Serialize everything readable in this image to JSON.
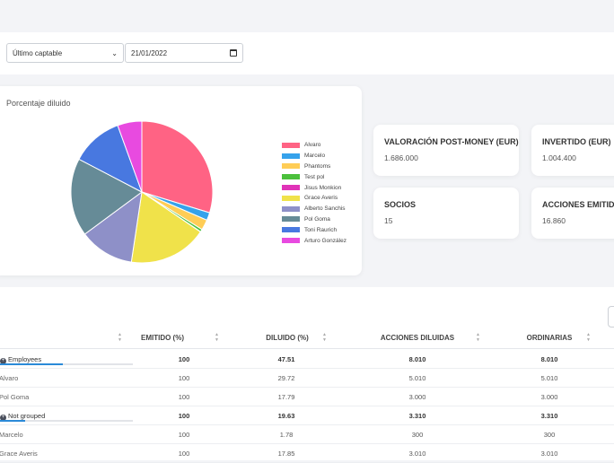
{
  "filters": {
    "period_select": "Último captable",
    "date_value": "21/01/2022"
  },
  "chart_data": {
    "type": "pie",
    "title": "Porcentaje diluido",
    "legend_position": "right",
    "series": [
      {
        "name": "Alvaro",
        "value": 29.72,
        "color": "#ff6384"
      },
      {
        "name": "Marcelo",
        "value": 1.78,
        "color": "#36a2eb"
      },
      {
        "name": "Phantoms",
        "value": 2.37,
        "color": "#ffcd56"
      },
      {
        "name": "Test pol",
        "value": 0.59,
        "color": "#4bc03c"
      },
      {
        "name": "Jisus Monkion",
        "value": 0.06,
        "color": "#e033b8"
      },
      {
        "name": "Grace Averis",
        "value": 17.85,
        "color": "#f0e24a"
      },
      {
        "name": "Alberto Sanchis",
        "value": 12.5,
        "color": "#8e90c8"
      },
      {
        "name": "Pol Goma",
        "value": 17.79,
        "color": "#668b97"
      },
      {
        "name": "Toni Raurich",
        "value": 11.8,
        "color": "#4878e0"
      },
      {
        "name": "Arturo González",
        "value": 5.54,
        "color": "#e84ae0"
      }
    ]
  },
  "stats": [
    {
      "label": "VALORACIÓN POST-MONEY (EUR)",
      "value": "1.686.000"
    },
    {
      "label": "INVERTIDO (EUR)",
      "value": "1.004.400"
    },
    {
      "label": "SOCIOS",
      "value": "15"
    },
    {
      "label": "ACCIONES EMITIDAS",
      "value": "16.860"
    }
  ],
  "table": {
    "columns": [
      "EMITIDO (%)",
      "DILUIDO (%)",
      "ACCIONES DILUIDAS",
      "ORDINARIAS"
    ],
    "rows": [
      {
        "type": "group",
        "name": "Employees",
        "progress": 0.47,
        "values": [
          "100",
          "47.51",
          "8.010",
          "8.010"
        ]
      },
      {
        "type": "item",
        "name": "Alvaro",
        "values": [
          "100",
          "29.72",
          "5.010",
          "5.010"
        ]
      },
      {
        "type": "item",
        "name": "Pol Goma",
        "values": [
          "100",
          "17.79",
          "3.000",
          "3.000"
        ]
      },
      {
        "type": "group",
        "name": "Not grouped",
        "progress": 0.19,
        "values": [
          "100",
          "19.63",
          "3.310",
          "3.310"
        ]
      },
      {
        "type": "item",
        "name": "Marcelo",
        "values": [
          "100",
          "1.78",
          "300",
          "300"
        ]
      },
      {
        "type": "item",
        "name": "Grace Averis",
        "values": [
          "100",
          "17.85",
          "3.010",
          "3.010"
        ]
      }
    ]
  }
}
